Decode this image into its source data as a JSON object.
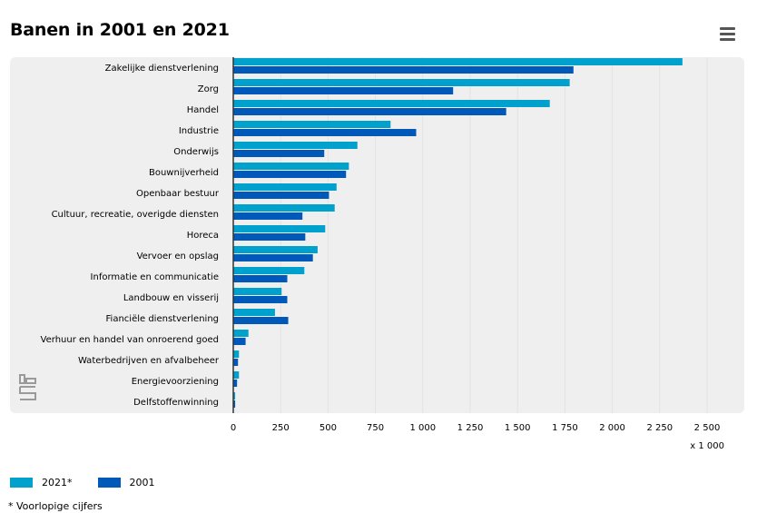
{
  "title": "Banen in 2001 en 2021",
  "footnote": "* Voorlopige cijfers",
  "unit_label": "x 1 000",
  "colors": {
    "s2021": "#00a1cd",
    "s2001": "#0058b8",
    "panel": "#efefef",
    "axis": "#333333",
    "grid": "#e3e3e3"
  },
  "chart_data": {
    "type": "bar",
    "orientation": "horizontal",
    "categories": [
      "Zakelijke dienstverlening",
      "Zorg",
      "Handel",
      "Industrie",
      "Onderwijs",
      "Bouwnijverheid",
      "Openbaar bestuur",
      "Cultuur, recreatie, overigde diensten",
      "Horeca",
      "Vervoer en opslag",
      "Informatie en communicatie",
      "Landbouw en visserij",
      "Fianciële dienstverlening",
      "Verhuur en handel van onroerend goed",
      "Waterbedrijven en afvalbeheer",
      "Energievoorziening",
      "Delfstoffenwinning"
    ],
    "series": [
      {
        "name": "2021*",
        "color": "#00a1cd",
        "values": [
          2370,
          1775,
          1670,
          830,
          655,
          610,
          545,
          535,
          485,
          445,
          375,
          255,
          220,
          80,
          30,
          30,
          10
        ]
      },
      {
        "name": "2001",
        "color": "#0058b8",
        "values": [
          1795,
          1160,
          1440,
          965,
          480,
          595,
          505,
          365,
          380,
          420,
          285,
          285,
          290,
          65,
          25,
          20,
          10
        ]
      }
    ],
    "xlim": [
      0,
      2500
    ],
    "xticks": [
      0,
      250,
      500,
      750,
      1000,
      1250,
      1500,
      1750,
      2000,
      2250,
      2500
    ],
    "xtick_labels": [
      "0",
      "250",
      "500",
      "750",
      "1 000",
      "1 250",
      "1 500",
      "1 750",
      "2 000",
      "2 250",
      "2 500"
    ],
    "xlabel": "",
    "ylabel": "",
    "grid": true,
    "legend_position": "bottom-left"
  }
}
